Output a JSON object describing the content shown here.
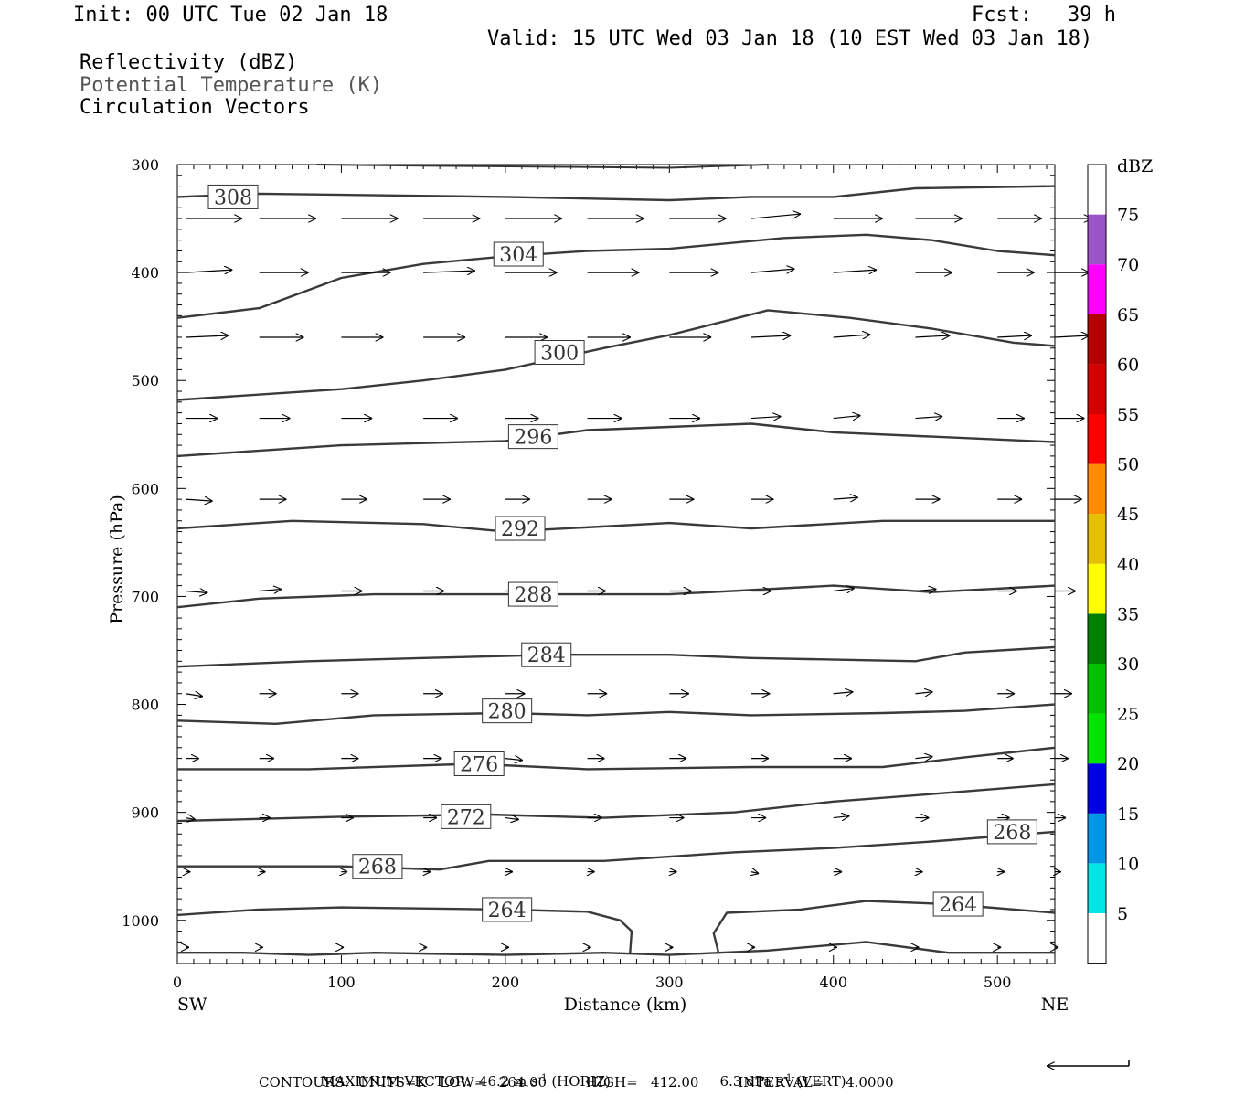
{
  "header": {
    "init": "Init: 00 UTC Tue 02 Jan 18",
    "fcst_label": "Fcst:",
    "fcst_value": "39 h",
    "valid": "Valid: 15 UTC Wed 03 Jan 18 (10 EST Wed 03 Jan 18)"
  },
  "fields": [
    "Reflectivity (dBZ)",
    "Potential Temperature (K)",
    "Circulation Vectors"
  ],
  "chart_data": {
    "type": "cross-section",
    "xlabel": "Distance (km)",
    "ylabel": "Pressure (hPa)",
    "xlim": [
      0,
      535
    ],
    "ylim": [
      300,
      1040
    ],
    "x_ticks": [
      0,
      100,
      200,
      300,
      400,
      500
    ],
    "y_ticks": [
      300,
      400,
      500,
      600,
      700,
      800,
      900,
      1000
    ],
    "left_end_label": "SW",
    "right_end_label": "NE",
    "colorbar": {
      "title": "dBZ",
      "levels": [
        5,
        10,
        15,
        20,
        25,
        30,
        35,
        40,
        45,
        50,
        55,
        60,
        65,
        70,
        75
      ],
      "colors": [
        "#ffffff",
        "#00e5e5",
        "#0096e5",
        "#0000e5",
        "#00e500",
        "#00c000",
        "#008000",
        "#ffff00",
        "#e5c000",
        "#ff8c00",
        "#ff0000",
        "#d40000",
        "#b40000",
        "#ff00ff",
        "#9955c9",
        "#ffffff"
      ]
    },
    "theta_contours": [
      {
        "label": "308",
        "points": [
          [
            0,
            330
          ],
          [
            50,
            327
          ],
          [
            100,
            328
          ],
          [
            200,
            330
          ],
          [
            300,
            333
          ],
          [
            350,
            330
          ],
          [
            400,
            330
          ],
          [
            450,
            322
          ],
          [
            535,
            320
          ]
        ],
        "label_at": [
          34,
          330
        ]
      },
      {
        "label": "304",
        "points": [
          [
            0,
            442
          ],
          [
            50,
            433
          ],
          [
            100,
            405
          ],
          [
            150,
            392
          ],
          [
            200,
            385
          ],
          [
            250,
            380
          ],
          [
            300,
            378
          ],
          [
            370,
            368
          ],
          [
            420,
            365
          ],
          [
            460,
            370
          ],
          [
            500,
            380
          ],
          [
            535,
            384
          ]
        ],
        "label_at": [
          208,
          383
        ]
      },
      {
        "label": "300",
        "points": [
          [
            0,
            518
          ],
          [
            100,
            508
          ],
          [
            150,
            500
          ],
          [
            200,
            490
          ],
          [
            260,
            470
          ],
          [
            300,
            458
          ],
          [
            360,
            435
          ],
          [
            410,
            442
          ],
          [
            460,
            452
          ],
          [
            510,
            465
          ],
          [
            535,
            468
          ]
        ],
        "label_at": [
          233,
          474
        ]
      },
      {
        "label": "296",
        "points": [
          [
            0,
            570
          ],
          [
            100,
            560
          ],
          [
            150,
            558
          ],
          [
            200,
            556
          ],
          [
            250,
            546
          ],
          [
            300,
            543
          ],
          [
            350,
            540
          ],
          [
            400,
            548
          ],
          [
            460,
            552
          ],
          [
            535,
            557
          ]
        ],
        "label_at": [
          217,
          552
        ]
      },
      {
        "label": "292",
        "points": [
          [
            0,
            637
          ],
          [
            70,
            630
          ],
          [
            150,
            633
          ],
          [
            200,
            640
          ],
          [
            300,
            632
          ],
          [
            350,
            637
          ],
          [
            430,
            630
          ],
          [
            535,
            630
          ]
        ],
        "label_at": [
          209,
          637
        ]
      },
      {
        "label": "288",
        "points": [
          [
            0,
            710
          ],
          [
            50,
            702
          ],
          [
            120,
            698
          ],
          [
            200,
            698
          ],
          [
            300,
            698
          ],
          [
            400,
            690
          ],
          [
            460,
            696
          ],
          [
            535,
            690
          ]
        ],
        "label_at": [
          217,
          698
        ]
      },
      {
        "label": "284",
        "points": [
          [
            0,
            765
          ],
          [
            80,
            760
          ],
          [
            150,
            757
          ],
          [
            230,
            754
          ],
          [
            300,
            754
          ],
          [
            350,
            757
          ],
          [
            450,
            760
          ],
          [
            480,
            752
          ],
          [
            535,
            747
          ]
        ],
        "label_at": [
          225,
          754
        ]
      },
      {
        "label": "280",
        "points": [
          [
            0,
            815
          ],
          [
            60,
            818
          ],
          [
            120,
            810
          ],
          [
            200,
            808
          ],
          [
            250,
            810
          ],
          [
            300,
            807
          ],
          [
            350,
            810
          ],
          [
            430,
            808
          ],
          [
            480,
            806
          ],
          [
            535,
            800
          ]
        ],
        "label_at": [
          201,
          806
        ]
      },
      {
        "label": "276",
        "points": [
          [
            0,
            860
          ],
          [
            80,
            860
          ],
          [
            180,
            855
          ],
          [
            250,
            860
          ],
          [
            350,
            858
          ],
          [
            430,
            858
          ],
          [
            480,
            849
          ],
          [
            535,
            840
          ]
        ],
        "label_at": [
          184,
          855
        ]
      },
      {
        "label": "272",
        "points": [
          [
            0,
            908
          ],
          [
            100,
            904
          ],
          [
            190,
            902
          ],
          [
            260,
            905
          ],
          [
            340,
            900
          ],
          [
            400,
            890
          ],
          [
            460,
            883
          ],
          [
            535,
            874
          ]
        ],
        "label_at": [
          176,
          904
        ]
      },
      {
        "label": "268",
        "points": [
          [
            0,
            950
          ],
          [
            100,
            950
          ],
          [
            160,
            953
          ],
          [
            190,
            945
          ],
          [
            260,
            945
          ],
          [
            340,
            937
          ],
          [
            400,
            933
          ],
          [
            460,
            927
          ],
          [
            535,
            918
          ]
        ],
        "label_at": [
          122,
          950
        ]
      },
      {
        "label": "268",
        "points": [],
        "label_at": [
          509,
          918
        ]
      },
      {
        "label": "264",
        "points": [
          [
            0,
            995
          ],
          [
            50,
            990
          ],
          [
            100,
            988
          ],
          [
            200,
            990
          ],
          [
            250,
            992
          ],
          [
            270,
            1000
          ],
          [
            277,
            1010
          ],
          [
            276,
            1030
          ]
        ],
        "label_at": [
          201,
          990
        ]
      },
      {
        "label": "264",
        "points": [
          [
            330,
            1030
          ],
          [
            327,
            1012
          ],
          [
            335,
            993
          ],
          [
            380,
            990
          ],
          [
            420,
            982
          ],
          [
            470,
            985
          ],
          [
            535,
            993
          ]
        ],
        "label_at": [
          476,
          985
        ]
      },
      {
        "label": "",
        "points": [
          [
            0,
            1030
          ],
          [
            40,
            1030
          ],
          [
            80,
            1032
          ],
          [
            120,
            1030
          ],
          [
            200,
            1032
          ],
          [
            260,
            1030
          ],
          [
            300,
            1032
          ],
          [
            360,
            1028
          ],
          [
            420,
            1020
          ],
          [
            470,
            1030
          ],
          [
            535,
            1030
          ]
        ],
        "label_at": null
      }
    ],
    "top_contour": [
      [
        85,
        300
      ],
      [
        150,
        301
      ],
      [
        300,
        303
      ],
      [
        360,
        300
      ]
    ],
    "vectors": {
      "rows": [
        {
          "p": 350,
          "len": [
            46,
            46,
            46,
            46,
            46,
            46,
            46,
            40,
            40,
            38,
            36,
            30
          ],
          "dp": [
            0,
            0,
            0,
            0,
            0,
            0,
            0,
            -5,
            0,
            0,
            0,
            0
          ]
        },
        {
          "p": 400,
          "len": [
            38,
            40,
            40,
            42,
            42,
            42,
            40,
            35,
            35,
            30,
            30,
            28
          ],
          "dp": [
            -3,
            0,
            0,
            -2,
            0,
            0,
            0,
            -4,
            -3,
            0,
            0,
            0
          ]
        },
        {
          "p": 460,
          "len": [
            35,
            36,
            34,
            34,
            34,
            35,
            34,
            32,
            30,
            28,
            28,
            28
          ],
          "dp": [
            -2,
            0,
            0,
            0,
            0,
            0,
            0,
            -2,
            -3,
            -2,
            -2,
            -2
          ]
        },
        {
          "p": 535,
          "len": [
            26,
            25,
            25,
            28,
            27,
            28,
            25,
            24,
            22,
            22,
            22,
            24
          ],
          "dp": [
            0,
            0,
            0,
            0,
            0,
            0,
            0,
            -2,
            -3,
            -2,
            0,
            0
          ]
        },
        {
          "p": 610,
          "len": [
            22,
            22,
            21,
            22,
            20,
            20,
            20,
            18,
            20,
            20,
            20,
            22
          ],
          "dp": [
            2,
            0,
            0,
            0,
            0,
            0,
            0,
            0,
            -2,
            0,
            0,
            0
          ]
        },
        {
          "p": 695,
          "len": [
            18,
            18,
            17,
            17,
            15,
            15,
            18,
            16,
            17,
            17,
            16,
            17
          ],
          "dp": [
            2,
            -2,
            0,
            0,
            0,
            0,
            0,
            0,
            -3,
            -2,
            0,
            0
          ]
        },
        {
          "p": 790,
          "len": [
            14,
            14,
            14,
            16,
            16,
            16,
            16,
            15,
            16,
            14,
            14,
            14
          ],
          "dp": [
            3,
            0,
            0,
            0,
            0,
            0,
            0,
            0,
            -2,
            -2,
            0,
            0
          ]
        },
        {
          "p": 850,
          "len": [
            11,
            12,
            14,
            15,
            14,
            14,
            14,
            14,
            15,
            14,
            13,
            11
          ],
          "dp": [
            0,
            0,
            0,
            0,
            2,
            0,
            0,
            0,
            0,
            -2,
            0,
            0
          ]
        },
        {
          "p": 905,
          "len": [
            8,
            9,
            10,
            11,
            11,
            12,
            12,
            12,
            13,
            11,
            10,
            9
          ],
          "dp": [
            2,
            0,
            0,
            0,
            2,
            0,
            0,
            0,
            -2,
            0,
            0,
            0
          ]
        },
        {
          "p": 955,
          "len": [
            4,
            5,
            5,
            6,
            6,
            6,
            6,
            6,
            7,
            6,
            6,
            5
          ],
          "dp": [
            0,
            0,
            0,
            0,
            0,
            0,
            0,
            2,
            0,
            0,
            0,
            0
          ]
        },
        {
          "p": 1025,
          "len": [
            3,
            3,
            2,
            3,
            3,
            3,
            3,
            3,
            3,
            3,
            3,
            3
          ],
          "dp": [
            0,
            0,
            0,
            0,
            0,
            0,
            0,
            0,
            0,
            0,
            0,
            0
          ]
        }
      ],
      "x": [
        5,
        50,
        100,
        150,
        200,
        250,
        300,
        350,
        400,
        450,
        500,
        535
      ]
    }
  },
  "footer": {
    "max_vector": "MAXIMUM VECTOR:  46.2 m s",
    "horiz_unit": "(HORIZ)",
    "vert_value": "6.3 dPa s",
    "vert_unit": "(VERT)",
    "exp": "-1",
    "contours": "CONTOURS:  UNITS=K   LOW=   264.00         HIGH=   412.00         INTERVAL=     4.0000"
  }
}
